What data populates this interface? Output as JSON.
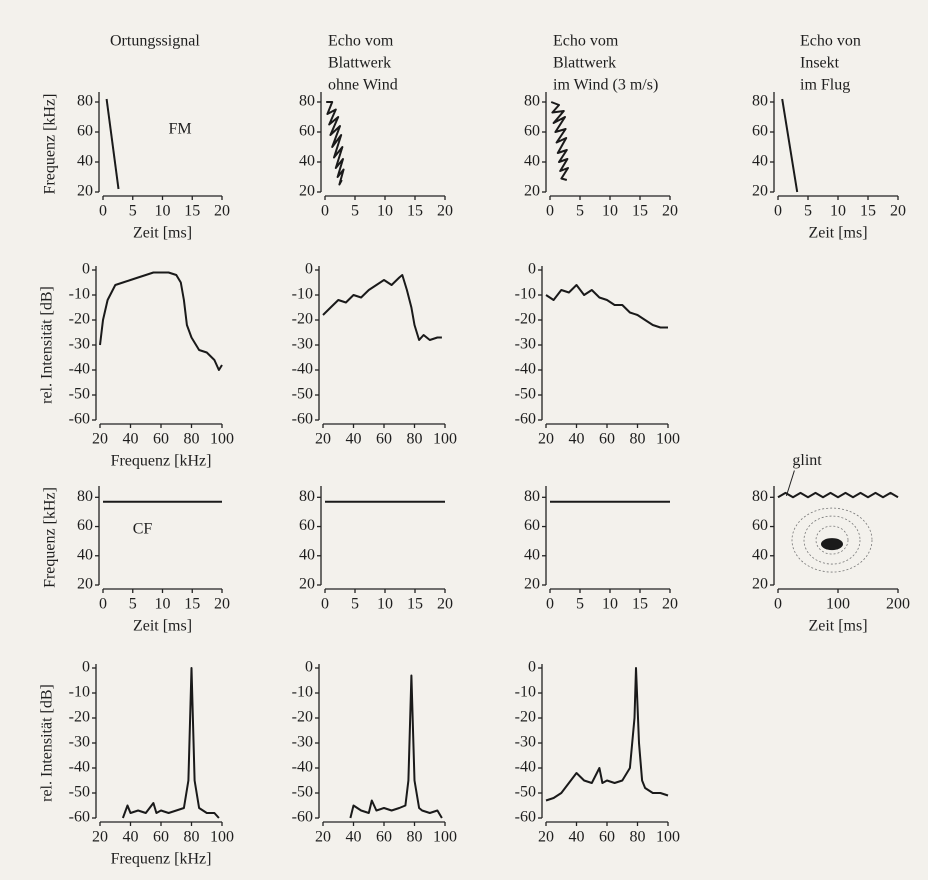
{
  "column_titles": [
    [
      "Ortungssignal"
    ],
    [
      "Echo vom",
      "Blattwerk",
      "ohne Wind"
    ],
    [
      "Echo vom",
      "Blattwerk",
      "im Wind (3 m/s)"
    ],
    [
      "Echo von",
      "Insekt",
      "im Flug"
    ]
  ],
  "chart_data": [
    {
      "type": "line",
      "color": "#1a1a1a",
      "xlabel": "Zeit [ms]",
      "ylabel": "Frequenz [kHz]",
      "annotation": "FM",
      "x": [
        0.6,
        2.6
      ],
      "values": [
        82,
        22
      ],
      "xlim": [
        0,
        20
      ],
      "ylim": [
        20,
        84
      ],
      "xticks": [
        0,
        5,
        10,
        15,
        20
      ],
      "yticks": [
        20,
        40,
        60,
        80
      ]
    },
    {
      "type": "line",
      "color": "#1a1a1a",
      "x": [
        0.2,
        1.2,
        0.4,
        1.8,
        0.7,
        2.2,
        0.9,
        2.5,
        1.2,
        2.7,
        1.5,
        2.9,
        1.8,
        3.0,
        2.1,
        3.1,
        2.4,
        2.8
      ],
      "values": [
        80,
        80,
        72,
        75,
        65,
        70,
        58,
        64,
        50,
        58,
        43,
        50,
        36,
        42,
        30,
        35,
        25,
        28
      ],
      "xlim": [
        0,
        20
      ],
      "ylim": [
        20,
        84
      ],
      "xticks": [
        0,
        5,
        10,
        15,
        20
      ],
      "yticks": [
        20,
        40,
        60,
        80
      ]
    },
    {
      "type": "line",
      "color": "#1a1a1a",
      "x": [
        0.2,
        1.5,
        0.4,
        2.3,
        0.6,
        2.5,
        0.9,
        2.6,
        1.1,
        2.7,
        1.3,
        2.8,
        1.5,
        2.9,
        1.7,
        3.0,
        1.9,
        2.8
      ],
      "values": [
        80,
        78,
        73,
        74,
        66,
        70,
        60,
        62,
        53,
        56,
        46,
        48,
        40,
        42,
        34,
        36,
        29,
        28
      ],
      "xlim": [
        0,
        20
      ],
      "ylim": [
        20,
        84
      ],
      "xticks": [
        0,
        5,
        10,
        15,
        20
      ],
      "yticks": [
        20,
        40,
        60,
        80
      ]
    },
    {
      "type": "line",
      "color": "#1a1a1a",
      "xlabel": "Zeit [ms]",
      "x": [
        0.7,
        3.2
      ],
      "values": [
        82,
        20
      ],
      "xlim": [
        0,
        20
      ],
      "ylim": [
        20,
        84
      ],
      "xticks": [
        0,
        5,
        10,
        15,
        20
      ],
      "yticks": [
        20,
        40,
        60,
        80
      ]
    },
    {
      "type": "line",
      "color": "#1a1a1a",
      "xlabel": "Frequenz [kHz]",
      "ylabel": "rel. Intensität [dB]",
      "x": [
        20,
        22,
        25,
        30,
        35,
        40,
        45,
        50,
        55,
        60,
        65,
        70,
        73,
        75,
        77,
        80,
        85,
        90,
        95,
        98,
        100
      ],
      "values": [
        -30,
        -20,
        -12,
        -6,
        -5,
        -4,
        -3,
        -2,
        -1,
        -1,
        -1,
        -2,
        -5,
        -12,
        -22,
        -27,
        -32,
        -33,
        -36,
        -40,
        -38
      ],
      "xlim": [
        20,
        100
      ],
      "ylim": [
        -60,
        0
      ],
      "xticks": [
        20,
        40,
        60,
        80,
        100
      ],
      "yticks": [
        0,
        -10,
        -20,
        -30,
        -40,
        -50,
        -60
      ]
    },
    {
      "type": "line",
      "color": "#1a1a1a",
      "x": [
        20,
        25,
        30,
        35,
        40,
        45,
        50,
        55,
        60,
        65,
        70,
        72,
        75,
        78,
        80,
        83,
        86,
        90,
        95,
        98
      ],
      "values": [
        -18,
        -15,
        -12,
        -13,
        -10,
        -11,
        -8,
        -6,
        -4,
        -6,
        -3,
        -2,
        -8,
        -15,
        -22,
        -28,
        -26,
        -28,
        -27,
        -27
      ],
      "xlim": [
        20,
        100
      ],
      "ylim": [
        -60,
        0
      ],
      "xticks": [
        20,
        40,
        60,
        80,
        100
      ],
      "yticks": [
        0,
        -10,
        -20,
        -30,
        -40,
        -50,
        -60
      ]
    },
    {
      "type": "line",
      "color": "#1a1a1a",
      "x": [
        20,
        25,
        30,
        35,
        40,
        45,
        50,
        55,
        60,
        65,
        70,
        75,
        80,
        85,
        90,
        95,
        100
      ],
      "values": [
        -10,
        -12,
        -8,
        -9,
        -6,
        -10,
        -8,
        -11,
        -12,
        -14,
        -14,
        -17,
        -18,
        -20,
        -22,
        -23,
        -23
      ],
      "xlim": [
        20,
        100
      ],
      "ylim": [
        -60,
        0
      ],
      "xticks": [
        20,
        40,
        60,
        80,
        100
      ],
      "yticks": [
        0,
        -10,
        -20,
        -30,
        -40,
        -50,
        -60
      ]
    },
    {
      "type": "line",
      "color": "#1a1a1a",
      "xlabel": "Zeit [ms]",
      "ylabel": "Frequenz [kHz]",
      "annotation": "CF",
      "x": [
        0,
        20
      ],
      "values": [
        77,
        77
      ],
      "xlim": [
        0,
        20
      ],
      "ylim": [
        20,
        85
      ],
      "xticks": [
        0,
        5,
        10,
        15,
        20
      ],
      "yticks": [
        20,
        40,
        60,
        80
      ]
    },
    {
      "type": "line",
      "color": "#1a1a1a",
      "x": [
        0,
        20
      ],
      "values": [
        77,
        77
      ],
      "xlim": [
        0,
        20
      ],
      "ylim": [
        20,
        85
      ],
      "xticks": [
        0,
        5,
        10,
        15,
        20
      ],
      "yticks": [
        20,
        40,
        60,
        80
      ]
    },
    {
      "type": "line",
      "color": "#1a1a1a",
      "x": [
        0,
        20
      ],
      "values": [
        77,
        77
      ],
      "xlim": [
        0,
        20
      ],
      "ylim": [
        20,
        85
      ],
      "xticks": [
        0,
        5,
        10,
        15,
        20
      ],
      "yticks": [
        20,
        40,
        60,
        80
      ]
    },
    {
      "type": "line",
      "color": "#1a1a1a",
      "xlabel": "Zeit [ms]",
      "annotation": "glint",
      "x": [
        0,
        12.5,
        25,
        37.5,
        50,
        62.5,
        75,
        87.5,
        100,
        112.5,
        125,
        137.5,
        150,
        162.5,
        175,
        187.5,
        200
      ],
      "values": [
        80,
        83,
        80,
        83,
        80,
        83,
        80,
        83,
        80,
        83,
        80,
        83,
        80,
        83,
        80,
        83,
        80
      ],
      "xlim": [
        0,
        200
      ],
      "ylim": [
        20,
        85
      ],
      "xticks": [
        0,
        100,
        200
      ],
      "yticks": [
        20,
        40,
        60,
        80
      ]
    },
    {
      "type": "line",
      "color": "#1a1a1a",
      "xlabel": "Frequenz [kHz]",
      "ylabel": "rel. Intensität [dB]",
      "x": [
        35,
        38,
        40,
        45,
        50,
        55,
        57,
        60,
        65,
        70,
        75,
        78,
        80,
        82,
        85,
        90,
        95,
        98
      ],
      "values": [
        -60,
        -55,
        -58,
        -57,
        -58,
        -54,
        -58,
        -57,
        -58,
        -57,
        -56,
        -45,
        0,
        -45,
        -56,
        -58,
        -58,
        -60
      ],
      "xlim": [
        20,
        100
      ],
      "ylim": [
        -60,
        0
      ],
      "xticks": [
        20,
        40,
        60,
        80,
        100
      ],
      "yticks": [
        0,
        -10,
        -20,
        -30,
        -40,
        -50,
        -60
      ]
    },
    {
      "type": "line",
      "color": "#1a1a1a",
      "x": [
        38,
        40,
        45,
        50,
        52,
        55,
        60,
        65,
        70,
        74,
        76,
        78,
        80,
        83,
        85,
        90,
        95,
        98
      ],
      "values": [
        -60,
        -55,
        -57,
        -58,
        -53,
        -57,
        -56,
        -57,
        -56,
        -55,
        -45,
        -3,
        -45,
        -56,
        -57,
        -58,
        -57,
        -60
      ],
      "xlim": [
        20,
        100
      ],
      "ylim": [
        -60,
        0
      ],
      "xticks": [
        20,
        40,
        60,
        80,
        100
      ],
      "yticks": [
        0,
        -10,
        -20,
        -30,
        -40,
        -50,
        -60
      ]
    },
    {
      "type": "line",
      "color": "#1a1a1a",
      "x": [
        20,
        25,
        30,
        35,
        40,
        45,
        50,
        55,
        57,
        60,
        65,
        70,
        75,
        78,
        79,
        81,
        83,
        85,
        90,
        95,
        100
      ],
      "values": [
        -53,
        -52,
        -50,
        -46,
        -42,
        -45,
        -46,
        -40,
        -46,
        -45,
        -46,
        -45,
        -40,
        -20,
        0,
        -30,
        -45,
        -48,
        -50,
        -50,
        -51
      ],
      "xlim": [
        20,
        100
      ],
      "ylim": [
        -60,
        0
      ],
      "xticks": [
        20,
        40,
        60,
        80,
        100
      ],
      "yticks": [
        0,
        -10,
        -20,
        -30,
        -40,
        -50,
        -60
      ]
    }
  ]
}
